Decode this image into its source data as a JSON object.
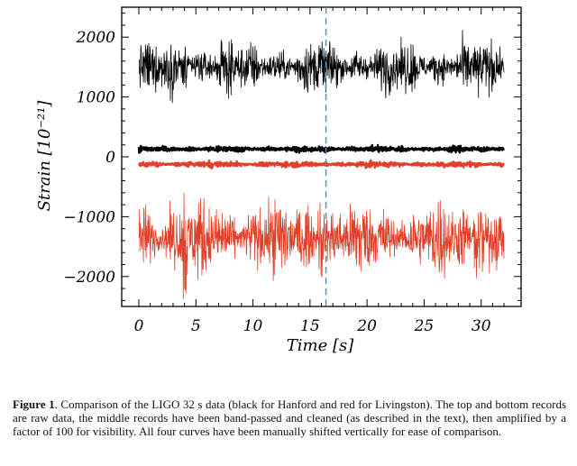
{
  "chart_data": {
    "type": "line",
    "title": "",
    "xlabel": "Time [s]",
    "ylabel": "Strain [10⁻²¹]",
    "xlim": [
      -1.5,
      33.5
    ],
    "ylim": [
      -2500,
      2500
    ],
    "xticks": [
      0,
      5,
      10,
      15,
      20,
      25,
      30
    ],
    "xtick_labels": [
      "0",
      "5",
      "10",
      "15",
      "20",
      "25",
      "30"
    ],
    "yticks": [
      2000,
      1000,
      0,
      -1000,
      -2000
    ],
    "ytick_labels": [
      "2000",
      "1000",
      "0",
      "−1000",
      "−2000"
    ],
    "vertical_marker": {
      "x": 16.4,
      "style": "dashed",
      "color": "#4a90c2"
    },
    "series": [
      {
        "label": "Hanford raw",
        "color": "#000000",
        "x_range": [
          0,
          32
        ],
        "offset": 1500,
        "spread": 150,
        "peak": 430,
        "peak_at": 4.0
      },
      {
        "label": "Hanford band-passed and cleaned (x100)",
        "color": "#000000",
        "x_range": [
          0,
          32
        ],
        "offset": 130,
        "spread": 18,
        "peak": 25,
        "peak_at": 16.4
      },
      {
        "label": "Livingston band-passed and cleaned (x100)",
        "color": "#e0402a",
        "x_range": [
          0,
          32
        ],
        "offset": -125,
        "spread": 18,
        "peak": 25,
        "peak_at": 16.4
      },
      {
        "label": "Livingston raw",
        "color": "#e0402a",
        "x_range": [
          0,
          32
        ],
        "offset": -1350,
        "spread": 230,
        "peak": 900,
        "peak_at": 4.0
      }
    ]
  },
  "caption": {
    "label": "Figure 1",
    "text": ". Comparison of the LIGO 32 s data (black for Hanford and red for Livingston). The top and bottom records are raw data, the middle records have been band-passed and cleaned (as described in the text), then amplified by a factor of 100 for visibility.  All four curves have been manually shifted vertically for ease of comparison."
  }
}
